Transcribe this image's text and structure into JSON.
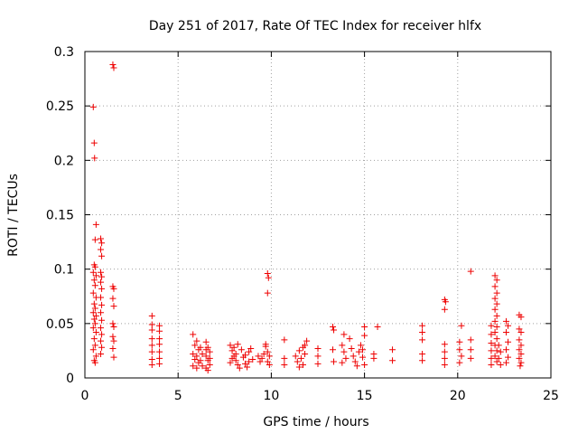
{
  "chart_data": {
    "type": "scatter",
    "title": "Day 251 of 2017, Rate Of TEC Index for receiver hlfx",
    "xlabel": "GPS time / hours",
    "ylabel": "ROTI / TECUs",
    "xlim": [
      0,
      25
    ],
    "ylim": [
      0,
      0.3
    ],
    "xticks": [
      0,
      5,
      10,
      15,
      20,
      25
    ],
    "xtick_labels": [
      "0",
      "5",
      "10",
      "15",
      "20",
      "25"
    ],
    "yticks": [
      0,
      0.05,
      0.1,
      0.15,
      0.2,
      0.25,
      0.3
    ],
    "ytick_labels": [
      "0",
      "0.05",
      "0.1",
      "0.15",
      "0.2",
      "0.25",
      "0.3"
    ],
    "grid": true,
    "marker": "plus",
    "color": "#ee0000",
    "series": [
      {
        "name": "ROTI",
        "points": [
          [
            0.45,
            0.249
          ],
          [
            0.5,
            0.216
          ],
          [
            0.52,
            0.202
          ],
          [
            0.6,
            0.141
          ],
          [
            0.55,
            0.127
          ],
          [
            0.5,
            0.104
          ],
          [
            0.55,
            0.102
          ],
          [
            0.45,
            0.097
          ],
          [
            0.6,
            0.094
          ],
          [
            0.5,
            0.09
          ],
          [
            0.55,
            0.085
          ],
          [
            0.45,
            0.078
          ],
          [
            0.6,
            0.074
          ],
          [
            0.5,
            0.068
          ],
          [
            0.55,
            0.064
          ],
          [
            0.45,
            0.06
          ],
          [
            0.6,
            0.057
          ],
          [
            0.5,
            0.054
          ],
          [
            0.55,
            0.05
          ],
          [
            0.45,
            0.046
          ],
          [
            0.6,
            0.042
          ],
          [
            0.5,
            0.036
          ],
          [
            0.55,
            0.03
          ],
          [
            0.45,
            0.026
          ],
          [
            0.6,
            0.02
          ],
          [
            0.5,
            0.016
          ],
          [
            0.55,
            0.014
          ],
          [
            0.85,
            0.128
          ],
          [
            0.9,
            0.124
          ],
          [
            0.85,
            0.118
          ],
          [
            0.9,
            0.112
          ],
          [
            0.85,
            0.097
          ],
          [
            0.9,
            0.093
          ],
          [
            0.85,
            0.088
          ],
          [
            0.9,
            0.082
          ],
          [
            0.85,
            0.074
          ],
          [
            0.9,
            0.067
          ],
          [
            0.85,
            0.06
          ],
          [
            0.9,
            0.053
          ],
          [
            0.85,
            0.046
          ],
          [
            0.9,
            0.04
          ],
          [
            0.85,
            0.034
          ],
          [
            0.9,
            0.028
          ],
          [
            0.85,
            0.022
          ],
          [
            1.5,
            0.288
          ],
          [
            1.55,
            0.285
          ],
          [
            1.5,
            0.084
          ],
          [
            1.55,
            0.082
          ],
          [
            1.5,
            0.073
          ],
          [
            1.55,
            0.066
          ],
          [
            1.5,
            0.05
          ],
          [
            1.55,
            0.047
          ],
          [
            1.5,
            0.038
          ],
          [
            1.55,
            0.034
          ],
          [
            1.5,
            0.027
          ],
          [
            1.55,
            0.019
          ],
          [
            3.6,
            0.057
          ],
          [
            3.6,
            0.049
          ],
          [
            3.6,
            0.044
          ],
          [
            3.6,
            0.036
          ],
          [
            3.6,
            0.03
          ],
          [
            3.6,
            0.024
          ],
          [
            3.6,
            0.017
          ],
          [
            3.6,
            0.012
          ],
          [
            4.0,
            0.048
          ],
          [
            4.0,
            0.043
          ],
          [
            4.0,
            0.036
          ],
          [
            4.0,
            0.031
          ],
          [
            4.0,
            0.024
          ],
          [
            4.0,
            0.018
          ],
          [
            4.0,
            0.013
          ],
          [
            5.8,
            0.04
          ],
          [
            6.0,
            0.034
          ],
          [
            5.9,
            0.03
          ],
          [
            6.1,
            0.026
          ],
          [
            5.8,
            0.022
          ],
          [
            6.0,
            0.02
          ],
          [
            5.9,
            0.017
          ],
          [
            6.1,
            0.014
          ],
          [
            5.8,
            0.011
          ],
          [
            6.0,
            0.009
          ],
          [
            6.2,
            0.028
          ],
          [
            6.2,
            0.016
          ],
          [
            6.3,
            0.022
          ],
          [
            6.3,
            0.011
          ],
          [
            6.5,
            0.033
          ],
          [
            6.6,
            0.028
          ],
          [
            6.7,
            0.024
          ],
          [
            6.5,
            0.02
          ],
          [
            6.6,
            0.016
          ],
          [
            6.7,
            0.012
          ],
          [
            6.5,
            0.009
          ],
          [
            6.6,
            0.007
          ],
          [
            6.7,
            0.018
          ],
          [
            6.5,
            0.026
          ],
          [
            7.8,
            0.03
          ],
          [
            7.9,
            0.025
          ],
          [
            8.0,
            0.02
          ],
          [
            8.1,
            0.016
          ],
          [
            8.2,
            0.012
          ],
          [
            8.3,
            0.009
          ],
          [
            7.8,
            0.014
          ],
          [
            7.9,
            0.018
          ],
          [
            8.0,
            0.028
          ],
          [
            8.1,
            0.022
          ],
          [
            8.4,
            0.026
          ],
          [
            8.5,
            0.019
          ],
          [
            8.6,
            0.013
          ],
          [
            8.7,
            0.01
          ],
          [
            8.8,
            0.024
          ],
          [
            8.9,
            0.027
          ],
          [
            9.0,
            0.017
          ],
          [
            8.2,
            0.031
          ],
          [
            8.6,
            0.021
          ],
          [
            8.8,
            0.015
          ],
          [
            9.3,
            0.02
          ],
          [
            9.4,
            0.015
          ],
          [
            9.5,
            0.018
          ],
          [
            9.6,
            0.022
          ],
          [
            9.7,
            0.031
          ],
          [
            9.7,
            0.029
          ],
          [
            9.8,
            0.024
          ],
          [
            9.9,
            0.02
          ],
          [
            9.8,
            0.015
          ],
          [
            9.9,
            0.012
          ],
          [
            9.8,
            0.096
          ],
          [
            9.85,
            0.092
          ],
          [
            9.8,
            0.078
          ],
          [
            10.7,
            0.035
          ],
          [
            10.7,
            0.018
          ],
          [
            10.7,
            0.012
          ],
          [
            11.3,
            0.02
          ],
          [
            11.4,
            0.015
          ],
          [
            11.5,
            0.025
          ],
          [
            11.6,
            0.018
          ],
          [
            11.7,
            0.012
          ],
          [
            11.8,
            0.03
          ],
          [
            11.9,
            0.034
          ],
          [
            11.8,
            0.022
          ],
          [
            11.5,
            0.01
          ],
          [
            11.7,
            0.028
          ],
          [
            12.5,
            0.027
          ],
          [
            12.5,
            0.02
          ],
          [
            12.5,
            0.013
          ],
          [
            13.3,
            0.047
          ],
          [
            13.35,
            0.044
          ],
          [
            13.3,
            0.026
          ],
          [
            13.35,
            0.015
          ],
          [
            13.8,
            0.03
          ],
          [
            13.9,
            0.024
          ],
          [
            14.0,
            0.018
          ],
          [
            13.8,
            0.014
          ],
          [
            13.9,
            0.04
          ],
          [
            14.2,
            0.036
          ],
          [
            14.3,
            0.027
          ],
          [
            14.4,
            0.02
          ],
          [
            14.5,
            0.015
          ],
          [
            14.6,
            0.011
          ],
          [
            14.7,
            0.024
          ],
          [
            14.8,
            0.03
          ],
          [
            14.9,
            0.019
          ],
          [
            15.0,
            0.039
          ],
          [
            15.0,
            0.047
          ],
          [
            15.0,
            0.012
          ],
          [
            14.9,
            0.026
          ],
          [
            15.5,
            0.022
          ],
          [
            15.5,
            0.018
          ],
          [
            15.7,
            0.047
          ],
          [
            16.5,
            0.026
          ],
          [
            16.5,
            0.016
          ],
          [
            18.1,
            0.048
          ],
          [
            18.1,
            0.042
          ],
          [
            18.1,
            0.035
          ],
          [
            18.1,
            0.022
          ],
          [
            18.1,
            0.016
          ],
          [
            19.3,
            0.072
          ],
          [
            19.35,
            0.07
          ],
          [
            19.3,
            0.063
          ],
          [
            19.3,
            0.031
          ],
          [
            19.3,
            0.024
          ],
          [
            19.3,
            0.018
          ],
          [
            19.3,
            0.012
          ],
          [
            20.1,
            0.033
          ],
          [
            20.2,
            0.048
          ],
          [
            20.1,
            0.026
          ],
          [
            20.2,
            0.02
          ],
          [
            20.1,
            0.014
          ],
          [
            20.7,
            0.098
          ],
          [
            20.7,
            0.035
          ],
          [
            20.7,
            0.026
          ],
          [
            20.7,
            0.018
          ],
          [
            21.8,
            0.048
          ],
          [
            21.8,
            0.04
          ],
          [
            21.8,
            0.032
          ],
          [
            21.8,
            0.025
          ],
          [
            21.8,
            0.018
          ],
          [
            21.8,
            0.012
          ],
          [
            22.0,
            0.094
          ],
          [
            22.1,
            0.09
          ],
          [
            22.0,
            0.084
          ],
          [
            22.1,
            0.078
          ],
          [
            22.0,
            0.073
          ],
          [
            22.1,
            0.068
          ],
          [
            22.0,
            0.063
          ],
          [
            22.1,
            0.057
          ],
          [
            22.0,
            0.052
          ],
          [
            22.1,
            0.047
          ],
          [
            22.0,
            0.042
          ],
          [
            22.1,
            0.036
          ],
          [
            22.0,
            0.03
          ],
          [
            22.1,
            0.025
          ],
          [
            22.0,
            0.02
          ],
          [
            22.1,
            0.015
          ],
          [
            22.2,
            0.03
          ],
          [
            22.2,
            0.018
          ],
          [
            22.3,
            0.024
          ],
          [
            22.3,
            0.012
          ],
          [
            22.6,
            0.052
          ],
          [
            22.7,
            0.048
          ],
          [
            22.6,
            0.042
          ],
          [
            22.7,
            0.033
          ],
          [
            22.6,
            0.026
          ],
          [
            22.7,
            0.019
          ],
          [
            22.6,
            0.014
          ],
          [
            23.3,
            0.058
          ],
          [
            23.4,
            0.056
          ],
          [
            23.3,
            0.045
          ],
          [
            23.4,
            0.042
          ],
          [
            23.3,
            0.035
          ],
          [
            23.4,
            0.03
          ],
          [
            23.3,
            0.026
          ],
          [
            23.4,
            0.022
          ],
          [
            23.3,
            0.018
          ],
          [
            23.4,
            0.014
          ],
          [
            23.35,
            0.011
          ]
        ]
      }
    ]
  }
}
